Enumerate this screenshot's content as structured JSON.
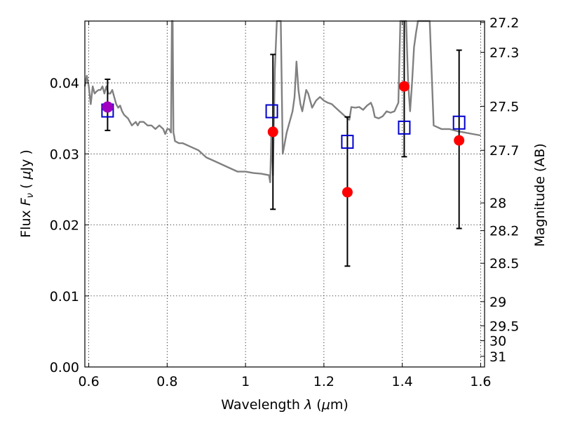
{
  "chart_data": {
    "type": "scatter",
    "xlim": [
      0.59,
      1.61
    ],
    "ylim": [
      0.0,
      0.0487
    ],
    "grid": true,
    "x_ticks": [
      0.6,
      0.8,
      1.0,
      1.2,
      1.4,
      1.6
    ],
    "x_tick_labels": [
      "0.6",
      "0.8",
      "1",
      "1.2",
      "1.4",
      "1.6"
    ],
    "y_ticks": [
      0.0,
      0.01,
      0.02,
      0.03,
      0.04
    ],
    "y_tick_labels": [
      "0.00",
      "0.01",
      "0.02",
      "0.03",
      "0.04"
    ],
    "xlabel_parts": [
      "Wavelength ",
      "λ",
      " (",
      "μ",
      "m)"
    ],
    "ylabel_parts": [
      "Flux ",
      "F",
      "ν",
      " ( ",
      "μ",
      "Jy )"
    ],
    "right_axis": {
      "label": "Magnitude (AB)",
      "ticks": [
        {
          "label": "27.2",
          "flux": 0.0485
        },
        {
          "label": "27.3",
          "flux": 0.0443
        },
        {
          "label": "27.5",
          "flux": 0.0367
        },
        {
          "label": "27.7",
          "flux": 0.0305
        },
        {
          "label": "28",
          "flux": 0.0231
        },
        {
          "label": "28.2",
          "flux": 0.0192
        },
        {
          "label": "28.5",
          "flux": 0.0146
        },
        {
          "label": "29",
          "flux": 0.0092
        },
        {
          "label": "29.5",
          "flux": 0.0058
        },
        {
          "label": "30",
          "flux": 0.0037
        },
        {
          "label": "31",
          "flux": 0.0015
        }
      ]
    },
    "series": [
      {
        "kind": "model-spectrum",
        "color": "#808080",
        "x": [
          0.59,
          0.595,
          0.6,
          0.605,
          0.61,
          0.615,
          0.62,
          0.625,
          0.63,
          0.635,
          0.64,
          0.645,
          0.65,
          0.655,
          0.66,
          0.665,
          0.67,
          0.675,
          0.68,
          0.685,
          0.69,
          0.7,
          0.71,
          0.72,
          0.725,
          0.73,
          0.74,
          0.75,
          0.76,
          0.77,
          0.78,
          0.79,
          0.795,
          0.8,
          0.805,
          0.81,
          0.812,
          0.814,
          0.816,
          0.818,
          0.82,
          0.83,
          0.84,
          0.86,
          0.88,
          0.9,
          0.92,
          0.94,
          0.96,
          0.98,
          1.0,
          1.02,
          1.04,
          1.06,
          1.063,
          1.066,
          1.07,
          1.075,
          1.08,
          1.085,
          1.09,
          1.095,
          1.1,
          1.105,
          1.11,
          1.115,
          1.12,
          1.125,
          1.13,
          1.135,
          1.14,
          1.145,
          1.15,
          1.155,
          1.16,
          1.165,
          1.17,
          1.18,
          1.19,
          1.2,
          1.21,
          1.22,
          1.23,
          1.24,
          1.25,
          1.26,
          1.265,
          1.27,
          1.28,
          1.29,
          1.3,
          1.31,
          1.32,
          1.325,
          1.33,
          1.34,
          1.35,
          1.36,
          1.37,
          1.38,
          1.39,
          1.395,
          1.4,
          1.405,
          1.41,
          1.415,
          1.42,
          1.425,
          1.43,
          1.435,
          1.44,
          1.445,
          1.45,
          1.455,
          1.46,
          1.465,
          1.47,
          1.48,
          1.5,
          1.52,
          1.54,
          1.56,
          1.58,
          1.6
        ],
        "y": [
          0.0395,
          0.041,
          0.0395,
          0.037,
          0.0395,
          0.0385,
          0.0388,
          0.039,
          0.039,
          0.0395,
          0.0385,
          0.0395,
          0.0385,
          0.0385,
          0.039,
          0.038,
          0.037,
          0.0365,
          0.0368,
          0.036,
          0.0355,
          0.035,
          0.034,
          0.0345,
          0.034,
          0.0345,
          0.0345,
          0.034,
          0.034,
          0.0335,
          0.034,
          0.0335,
          0.0328,
          0.0335,
          0.0335,
          0.033,
          0.06,
          0.06,
          0.033,
          0.0325,
          0.0318,
          0.0315,
          0.0315,
          0.031,
          0.0305,
          0.0295,
          0.029,
          0.0285,
          0.028,
          0.0275,
          0.0275,
          0.0273,
          0.0272,
          0.027,
          0.026,
          0.033,
          0.027,
          0.042,
          0.06,
          0.06,
          0.06,
          0.03,
          0.0315,
          0.033,
          0.034,
          0.035,
          0.036,
          0.038,
          0.043,
          0.039,
          0.037,
          0.036,
          0.0375,
          0.039,
          0.0385,
          0.0375,
          0.0365,
          0.0375,
          0.038,
          0.0375,
          0.0372,
          0.037,
          0.0365,
          0.036,
          0.0355,
          0.035,
          0.0348,
          0.0366,
          0.0365,
          0.0366,
          0.0362,
          0.0368,
          0.0372,
          0.0365,
          0.0352,
          0.035,
          0.0353,
          0.036,
          0.0358,
          0.036,
          0.0372,
          0.06,
          0.06,
          0.06,
          0.05,
          0.04,
          0.036,
          0.04,
          0.045,
          0.047,
          0.06,
          0.06,
          0.06,
          0.06,
          0.06,
          0.06,
          0.06,
          0.034,
          0.0335,
          0.0335,
          0.0332,
          0.033,
          0.0328,
          0.0326
        ]
      },
      {
        "kind": "open-squares",
        "color": "#0000cc",
        "x": [
          0.648,
          1.067,
          1.26,
          1.405,
          1.545
        ],
        "y": [
          0.0361,
          0.036,
          0.0317,
          0.0337,
          0.0344
        ]
      },
      {
        "kind": "filled-circles",
        "color": "#ff0000",
        "x": [
          0.648,
          1.07,
          1.26,
          1.405,
          1.545
        ],
        "y": [
          0.0366,
          0.0331,
          0.0246,
          0.0395,
          0.0319
        ],
        "yerr_low": [
          0.0033,
          0.0109,
          0.0104,
          0.0099,
          0.0124
        ],
        "yerr_high": [
          0.0039,
          0.0109,
          0.0106,
          0.0135,
          0.0127
        ]
      },
      {
        "kind": "highlight-circle",
        "color": "#a000c0",
        "x": [
          0.648
        ],
        "y": [
          0.0366
        ]
      }
    ]
  }
}
